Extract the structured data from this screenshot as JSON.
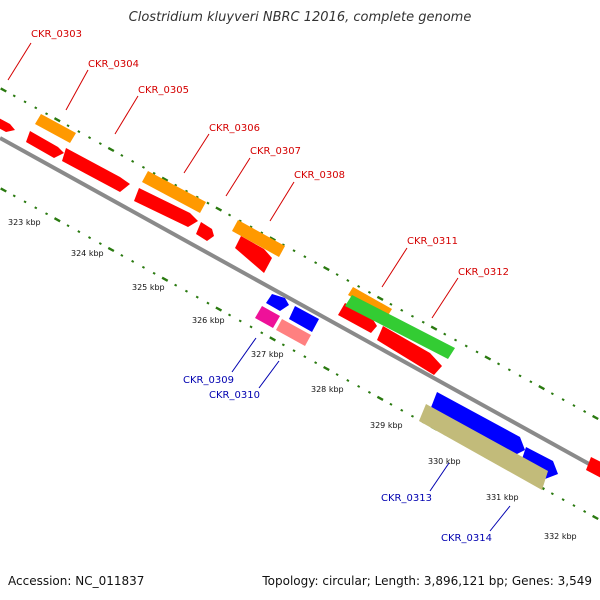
{
  "title": "Clostridium kluyveri NBRC 12016, complete genome",
  "footer": {
    "accession_text": "Accession: NC_011837",
    "summary_text": "Topology: circular; Length: 3,896,121 bp; Genes: 3,549"
  },
  "colors": {
    "label_forward": "#d40000",
    "label_reverse": "#0000b0",
    "tick": "#2a7a10",
    "backbone": "#8a8a8a"
  },
  "kbp_labels": [
    "323 kbp",
    "324 kbp",
    "325 kbp",
    "326 kbp",
    "327 kbp",
    "328 kbp",
    "329 kbp",
    "330 kbp",
    "331 kbp",
    "332 kbp"
  ],
  "gene_labels": [
    {
      "name": "CKR_0303",
      "strand": "forward"
    },
    {
      "name": "CKR_0304",
      "strand": "forward"
    },
    {
      "name": "CKR_0305",
      "strand": "forward"
    },
    {
      "name": "CKR_0306",
      "strand": "forward"
    },
    {
      "name": "CKR_0307",
      "strand": "forward"
    },
    {
      "name": "CKR_0308",
      "strand": "forward"
    },
    {
      "name": "CKR_0309",
      "strand": "reverse"
    },
    {
      "name": "CKR_0310",
      "strand": "reverse"
    },
    {
      "name": "CKR_0311",
      "strand": "forward"
    },
    {
      "name": "CKR_0312",
      "strand": "forward"
    },
    {
      "name": "CKR_0313",
      "strand": "reverse"
    },
    {
      "name": "CKR_0314",
      "strand": "reverse"
    }
  ]
}
